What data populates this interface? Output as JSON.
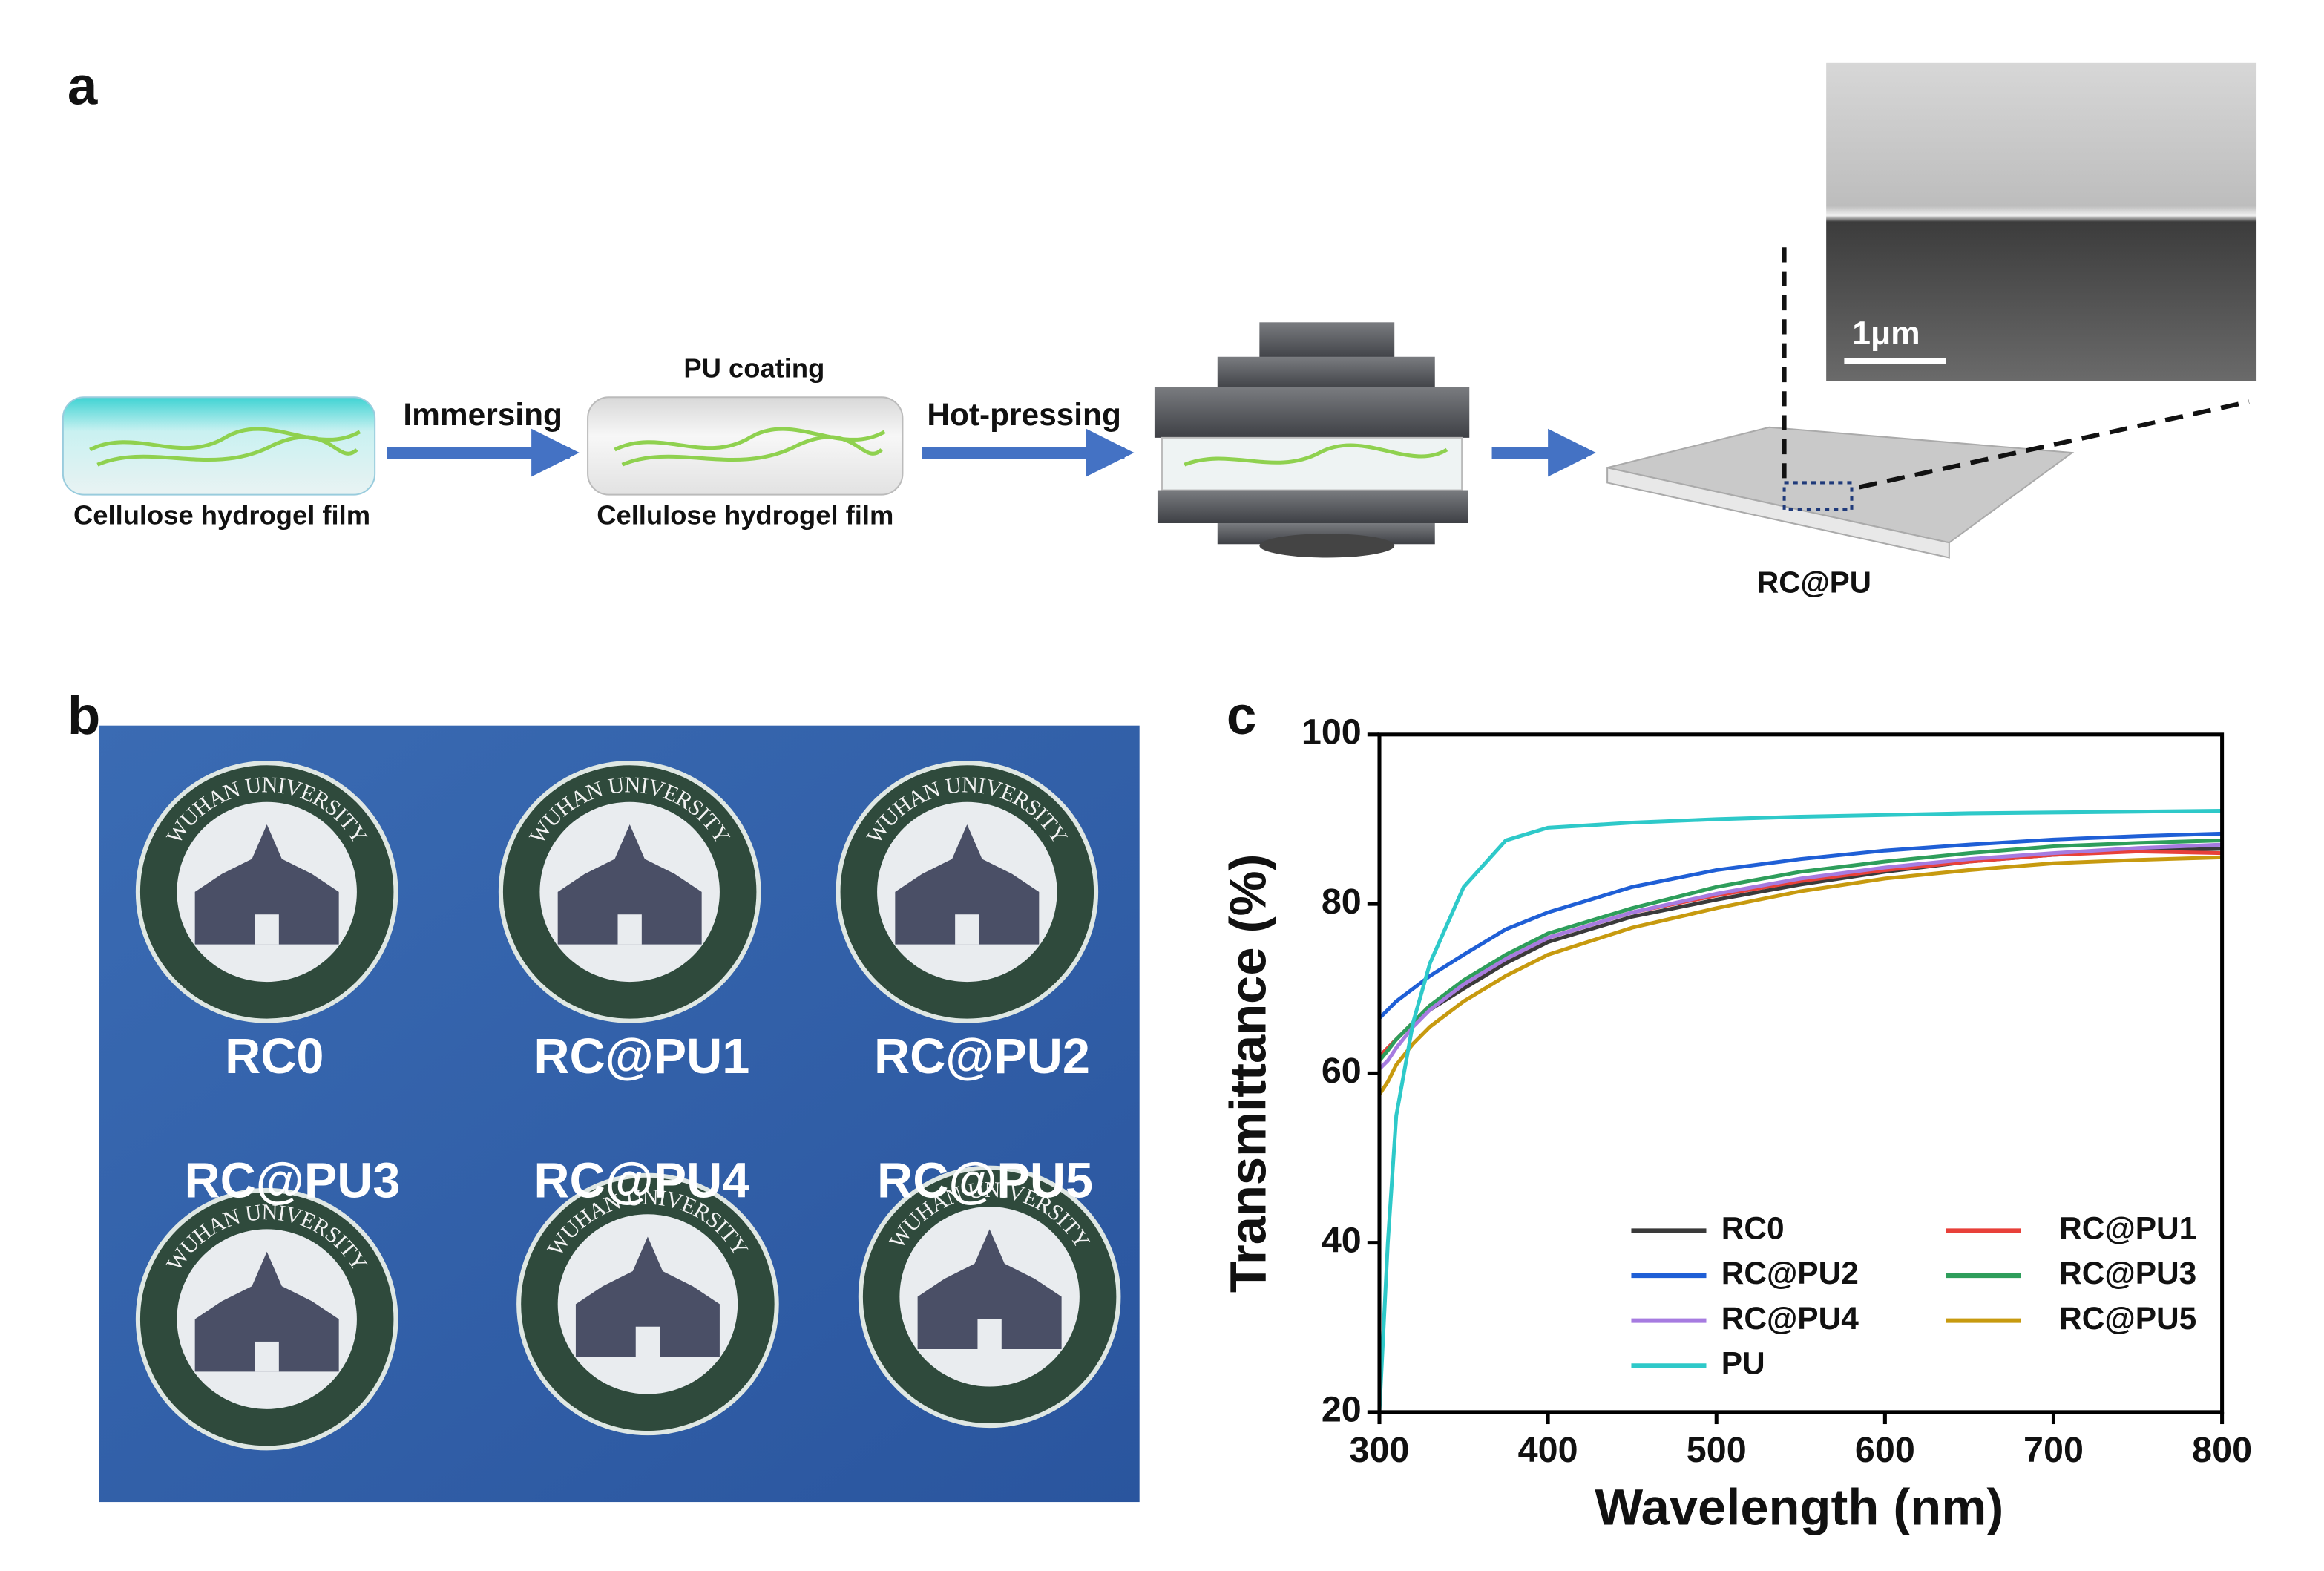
{
  "panel_a": {
    "label": "a",
    "film_label_1": "Cellulose hydrogel film",
    "step_1": "Immersing",
    "coating_label": "PU coating",
    "film_label_2": "Cellulose hydrogel film",
    "step_2": "Hot-pressing",
    "product_label": "RC@PU",
    "scale_bar": "1μm"
  },
  "panel_b": {
    "label": "b",
    "emblem_text": "WUHAN UNIVERSITY",
    "samples": [
      "RC0",
      "RC@PU1",
      "RC@PU2",
      "RC@PU3",
      "RC@PU4",
      "RC@PU5"
    ]
  },
  "chart_data": {
    "type": "line",
    "panel_label": "c",
    "xlabel": "Wavelength (nm)",
    "ylabel": "Transmittance (%)",
    "xlim": [
      300,
      800
    ],
    "ylim": [
      20,
      100
    ],
    "xticks": [
      300,
      400,
      500,
      600,
      700,
      800
    ],
    "yticks": [
      20,
      40,
      60,
      80,
      100
    ],
    "legend": "lower right",
    "x": [
      300,
      305,
      310,
      320,
      330,
      350,
      375,
      400,
      450,
      500,
      550,
      600,
      650,
      700,
      750,
      800
    ],
    "series": [
      {
        "name": "RC0",
        "color": "#3a3a3a",
        "values": [
          62,
          63,
          64,
          66,
          67.5,
          70,
          73,
          75.5,
          78.5,
          80.5,
          82.3,
          83.8,
          85,
          85.8,
          86.3,
          86.5
        ]
      },
      {
        "name": "RC@PU1",
        "color": "#e8403a",
        "values": [
          62,
          63,
          64,
          66,
          68,
          70.5,
          73.5,
          76,
          79,
          81,
          82.7,
          84,
          85,
          85.8,
          86.2,
          86
        ]
      },
      {
        "name": "RC@PU2",
        "color": "#1f5fd6",
        "values": [
          66.5,
          67.5,
          68.5,
          70,
          71.5,
          74,
          77,
          79,
          82,
          84,
          85.3,
          86.3,
          87,
          87.6,
          88,
          88.3
        ]
      },
      {
        "name": "RC@PU3",
        "color": "#2e9e5b",
        "values": [
          61.5,
          62.7,
          64,
          66,
          68,
          71,
          74,
          76.5,
          79.5,
          82,
          83.8,
          85,
          86,
          86.8,
          87.2,
          87.5
        ]
      },
      {
        "name": "RC@PU4",
        "color": "#a67be0",
        "values": [
          60.5,
          61.5,
          63,
          65.5,
          67.5,
          70.5,
          73.5,
          76,
          79,
          81.2,
          83,
          84.3,
          85.3,
          86,
          86.6,
          87
        ]
      },
      {
        "name": "RC@PU5",
        "color": "#c79a0f",
        "values": [
          57.5,
          59,
          61,
          63.5,
          65.5,
          68.5,
          71.5,
          74,
          77.2,
          79.5,
          81.5,
          83,
          84,
          84.8,
          85.2,
          85.5
        ]
      },
      {
        "name": "PU",
        "color": "#2ec9c9",
        "values": [
          20,
          40,
          55,
          66,
          73,
          82,
          87.5,
          89,
          89.6,
          90,
          90.3,
          90.5,
          90.7,
          90.8,
          90.9,
          91
        ]
      }
    ]
  }
}
